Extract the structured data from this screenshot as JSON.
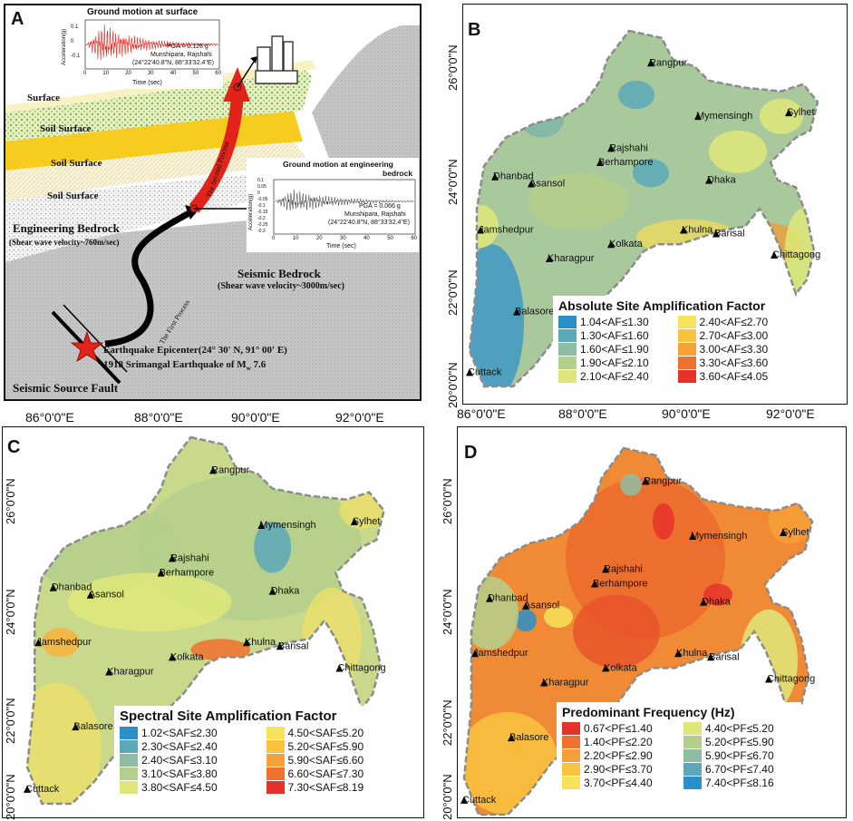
{
  "panelA": {
    "letter": "A",
    "surface_plot": {
      "title": "Ground motion at surface",
      "pga": "PGA = 0.126 g",
      "site": "Munshipara, Rajshahi",
      "coords": "(24°22'40.8\"N, 88°33'32.4\"E)",
      "ylabel": "Acceleration(g)",
      "xlabel": "Time (sec)",
      "yticks": [
        "0.1",
        "0",
        "-0.1"
      ],
      "xticks": [
        "0",
        "10",
        "20",
        "30",
        "40",
        "50",
        "60"
      ]
    },
    "bedrock_plot": {
      "title": "Ground motion at engineering",
      "title2": "bedrock",
      "pga": "PGA = 0.066 g",
      "site": "Munshipara, Rajshahi",
      "coords": "(24°22'40.8\"N, 88°33'32.4\"E)",
      "ylabel": "Acceleration(g)",
      "xlabel": "Time (sec)",
      "yticks": [
        "0.1",
        "0.05",
        "0",
        "-0.05",
        "-0.1",
        "-0.15",
        "-0.2",
        "-0.25",
        "-0.3"
      ],
      "xticks": [
        "0",
        "10",
        "20",
        "30",
        "40",
        "50",
        "60"
      ]
    },
    "layers": {
      "surface": "Surface",
      "soil1": "Soil Surface",
      "soil2": "Soil Surface",
      "soil3": "Soil Surface",
      "eng_bedrock": "Engineering Bedrock",
      "eng_bedrock_sub": "(Shear wave velocity~760m/sec)",
      "seismic_bedrock": "Seismic Bedrock",
      "seismic_bedrock_sub": "(Shear wave velocity~3000m/sec)",
      "fault": "Seismic Source Fault"
    },
    "second_process": "The Second Process",
    "first_process": "The First Process",
    "epicenter": "Earthquake Epicenter(24° 30' N, 91° 00' E)",
    "quake": "1918 Srimangal Earthquake of M",
    "quake_sub": "w",
    "quake_mag": " 7.6"
  },
  "cities": [
    {
      "name": "Rangpur"
    },
    {
      "name": "Sylhet"
    },
    {
      "name": "Mymensingh"
    },
    {
      "name": "Rajshahi"
    },
    {
      "name": "Berhampore"
    },
    {
      "name": "Dhanbad"
    },
    {
      "name": "Asansol"
    },
    {
      "name": "Dhaka"
    },
    {
      "name": "Jamshedpur"
    },
    {
      "name": "Khulna"
    },
    {
      "name": "Barisal"
    },
    {
      "name": "Kolkata"
    },
    {
      "name": "Kharagpur"
    },
    {
      "name": "Chittagong"
    },
    {
      "name": "Balasore"
    },
    {
      "name": "Cuttack"
    }
  ],
  "axis": {
    "lon_ticks": [
      "86°0'0\"E",
      "88°0'0\"E",
      "90°0'0\"E",
      "92°0'0\"E"
    ],
    "lat_ticks": [
      "26°0'0\"N",
      "24°0'0\"N",
      "22°0'0\"N",
      "20°0'0\"N"
    ]
  },
  "panelB": {
    "letter": "B",
    "legend_title": "Absolute Site Amplification Factor",
    "legend": [
      {
        "label": "1.04<AF≤1.30",
        "color": "#2b8fc9"
      },
      {
        "label": "1.30<AF≤1.60",
        "color": "#5aa8b8"
      },
      {
        "label": "1.60<AF≤1.90",
        "color": "#8fbda4"
      },
      {
        "label": "1.90<AF≤2.10",
        "color": "#b4cf8c"
      },
      {
        "label": "2.10<AF≤2.40",
        "color": "#dfe77a"
      },
      {
        "label": "2.40<AF≤2.70",
        "color": "#f7e25c"
      },
      {
        "label": "2.70<AF≤3.00",
        "color": "#f9c33f"
      },
      {
        "label": "3.00<AF≤3.30",
        "color": "#f7a03a"
      },
      {
        "label": "3.30<AF≤3.60",
        "color": "#f0702e"
      },
      {
        "label": "3.60<AF≤4.05",
        "color": "#e6322a"
      }
    ]
  },
  "panelC": {
    "letter": "C",
    "legend_title": "Spectral Site Amplification Factor",
    "legend": [
      {
        "label": "1.02<SAF≤2.30",
        "color": "#2b8fc9"
      },
      {
        "label": "2.30<SAF≤2.40",
        "color": "#5aa8b8"
      },
      {
        "label": "2.40<SAF≤3.10",
        "color": "#8fbda4"
      },
      {
        "label": "3.10<SAF≤3.80",
        "color": "#b4cf8c"
      },
      {
        "label": "3.80<SAF≤4.50",
        "color": "#dfe77a"
      },
      {
        "label": "4.50<SAF≤5.20",
        "color": "#f7e25c"
      },
      {
        "label": "5.20<SAF≤5.90",
        "color": "#f9c33f"
      },
      {
        "label": "5.90<SAF≤6.60",
        "color": "#f7a03a"
      },
      {
        "label": "6.60<SAF≤7.30",
        "color": "#f0702e"
      },
      {
        "label": "7.30<SAF≤8.19",
        "color": "#e6322a"
      }
    ]
  },
  "panelD": {
    "letter": "D",
    "legend_title": "Predominant Frequency (Hz)",
    "legend": [
      {
        "label": "0.67<PF≤1.40",
        "color": "#e6322a"
      },
      {
        "label": "1.40<PF≤2.20",
        "color": "#f0702e"
      },
      {
        "label": "2.20<PF≤2.90",
        "color": "#f7a03a"
      },
      {
        "label": "2.90<PF≤3.70",
        "color": "#f9c33f"
      },
      {
        "label": "3.70<PF≤4.40",
        "color": "#f7e25c"
      },
      {
        "label": "4.40<PF≤5.20",
        "color": "#dfe77a"
      },
      {
        "label": "5.20<PF≤5.90",
        "color": "#b4cf8c"
      },
      {
        "label": "5.90<PF≤6.70",
        "color": "#8fbda4"
      },
      {
        "label": "6.70<PF≤7.40",
        "color": "#5aa8b8"
      },
      {
        "label": "7.40<PF≤8.16",
        "color": "#2b8fc9"
      }
    ]
  }
}
